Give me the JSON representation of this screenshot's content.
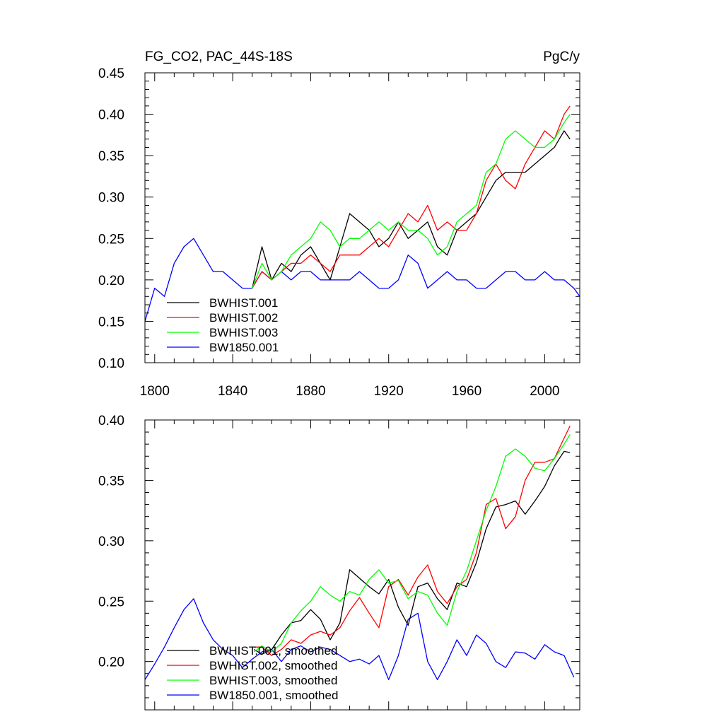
{
  "chart_data": [
    {
      "type": "line",
      "title": "FG_CO2, PAC_44S-18S",
      "units": "PgC/y",
      "xlim": [
        1795,
        2018
      ],
      "ylim": [
        0.1,
        0.45
      ],
      "xticks": [
        1800,
        1840,
        1880,
        1920,
        1960,
        2000
      ],
      "xtick_labels": [
        "1800",
        "1840",
        "1880",
        "1920",
        "1960",
        "2000"
      ],
      "yticks": [
        0.1,
        0.15,
        0.2,
        0.25,
        0.3,
        0.35,
        0.4,
        0.45
      ],
      "ytick_labels": [
        "0.10",
        "0.15",
        "0.20",
        "0.25",
        "0.30",
        "0.35",
        "0.40",
        "0.45"
      ],
      "legend_position": "lower-left",
      "series": [
        {
          "name": "BWHIST.001",
          "color": "#000000",
          "x": [
            1850,
            1855,
            1860,
            1865,
            1870,
            1875,
            1880,
            1885,
            1890,
            1895,
            1900,
            1905,
            1910,
            1915,
            1920,
            1925,
            1930,
            1935,
            1940,
            1945,
            1950,
            1955,
            1960,
            1965,
            1970,
            1975,
            1980,
            1985,
            1990,
            1995,
            2000,
            2005,
            2010,
            2013
          ],
          "y": [
            0.19,
            0.24,
            0.2,
            0.22,
            0.21,
            0.23,
            0.24,
            0.22,
            0.2,
            0.24,
            0.28,
            0.27,
            0.26,
            0.24,
            0.25,
            0.27,
            0.25,
            0.26,
            0.27,
            0.24,
            0.23,
            0.26,
            0.27,
            0.28,
            0.3,
            0.32,
            0.33,
            0.33,
            0.33,
            0.34,
            0.35,
            0.36,
            0.38,
            0.37
          ]
        },
        {
          "name": "BWHIST.002",
          "color": "#ff0000",
          "x": [
            1850,
            1855,
            1860,
            1865,
            1870,
            1875,
            1880,
            1885,
            1890,
            1895,
            1900,
            1905,
            1910,
            1915,
            1920,
            1925,
            1930,
            1935,
            1940,
            1945,
            1950,
            1955,
            1960,
            1965,
            1970,
            1975,
            1980,
            1985,
            1990,
            1995,
            2000,
            2005,
            2010,
            2013
          ],
          "y": [
            0.19,
            0.21,
            0.2,
            0.21,
            0.22,
            0.22,
            0.23,
            0.22,
            0.21,
            0.23,
            0.23,
            0.23,
            0.24,
            0.25,
            0.24,
            0.26,
            0.28,
            0.27,
            0.29,
            0.26,
            0.27,
            0.26,
            0.26,
            0.28,
            0.32,
            0.34,
            0.32,
            0.31,
            0.34,
            0.36,
            0.38,
            0.37,
            0.4,
            0.41
          ]
        },
        {
          "name": "BWHIST.003",
          "color": "#00ff00",
          "x": [
            1850,
            1855,
            1860,
            1865,
            1870,
            1875,
            1880,
            1885,
            1890,
            1895,
            1900,
            1905,
            1910,
            1915,
            1920,
            1925,
            1930,
            1935,
            1940,
            1945,
            1950,
            1955,
            1960,
            1965,
            1970,
            1975,
            1980,
            1985,
            1990,
            1995,
            2000,
            2005,
            2010,
            2013
          ],
          "y": [
            0.19,
            0.22,
            0.2,
            0.21,
            0.23,
            0.24,
            0.25,
            0.27,
            0.26,
            0.24,
            0.25,
            0.25,
            0.26,
            0.27,
            0.26,
            0.27,
            0.26,
            0.26,
            0.25,
            0.23,
            0.24,
            0.27,
            0.28,
            0.29,
            0.33,
            0.34,
            0.37,
            0.38,
            0.37,
            0.36,
            0.36,
            0.37,
            0.39,
            0.4
          ]
        },
        {
          "name": "BW1850.001",
          "color": "#0000ff",
          "x": [
            1795,
            1800,
            1805,
            1810,
            1815,
            1820,
            1825,
            1830,
            1835,
            1840,
            1845,
            1850,
            1855,
            1860,
            1865,
            1870,
            1875,
            1880,
            1885,
            1890,
            1895,
            1900,
            1905,
            1910,
            1915,
            1920,
            1925,
            1930,
            1935,
            1940,
            1945,
            1950,
            1955,
            1960,
            1965,
            1970,
            1975,
            1980,
            1985,
            1990,
            1995,
            2000,
            2005,
            2010,
            2015,
            2018
          ],
          "y": [
            0.15,
            0.19,
            0.18,
            0.22,
            0.24,
            0.25,
            0.23,
            0.21,
            0.21,
            0.2,
            0.19,
            0.19,
            0.21,
            0.2,
            0.21,
            0.2,
            0.21,
            0.21,
            0.2,
            0.2,
            0.2,
            0.2,
            0.21,
            0.2,
            0.19,
            0.19,
            0.2,
            0.23,
            0.22,
            0.19,
            0.2,
            0.21,
            0.2,
            0.2,
            0.19,
            0.19,
            0.2,
            0.21,
            0.21,
            0.2,
            0.2,
            0.21,
            0.2,
            0.2,
            0.19,
            0.18
          ]
        }
      ]
    },
    {
      "type": "line",
      "title": "",
      "xlim": [
        1795,
        2018
      ],
      "ylim": [
        0.16,
        0.4
      ],
      "xticks": [
        1800,
        1840,
        1880,
        1920,
        1960,
        2000
      ],
      "yticks": [
        0.2,
        0.25,
        0.3,
        0.35,
        0.4
      ],
      "ytick_labels": [
        "0.20",
        "0.25",
        "0.30",
        "0.35",
        "0.40"
      ],
      "legend_position": "lower-left",
      "series": [
        {
          "name": "BWHIST.001, smoothed",
          "color": "#000000",
          "x": [
            1851,
            1855,
            1860,
            1865,
            1870,
            1875,
            1880,
            1885,
            1890,
            1895,
            1900,
            1905,
            1910,
            1915,
            1920,
            1925,
            1930,
            1935,
            1940,
            1945,
            1950,
            1955,
            1960,
            1965,
            1970,
            1975,
            1980,
            1985,
            1990,
            1995,
            2000,
            2005,
            2010,
            2013
          ],
          "y": [
            0.21,
            0.206,
            0.21,
            0.222,
            0.232,
            0.234,
            0.243,
            0.235,
            0.218,
            0.232,
            0.276,
            0.269,
            0.262,
            0.256,
            0.268,
            0.245,
            0.23,
            0.262,
            0.265,
            0.252,
            0.243,
            0.265,
            0.262,
            0.282,
            0.31,
            0.328,
            0.33,
            0.333,
            0.322,
            0.333,
            0.345,
            0.362,
            0.374,
            0.373
          ]
        },
        {
          "name": "BWHIST.002, smoothed",
          "color": "#ff0000",
          "x": [
            1851,
            1855,
            1860,
            1865,
            1870,
            1875,
            1880,
            1885,
            1890,
            1895,
            1900,
            1905,
            1910,
            1915,
            1920,
            1925,
            1930,
            1935,
            1940,
            1945,
            1950,
            1955,
            1960,
            1965,
            1970,
            1975,
            1980,
            1985,
            1990,
            1995,
            2000,
            2005,
            2010,
            2013
          ],
          "y": [
            0.212,
            0.212,
            0.205,
            0.21,
            0.218,
            0.215,
            0.222,
            0.225,
            0.222,
            0.228,
            0.242,
            0.253,
            0.24,
            0.228,
            0.262,
            0.268,
            0.255,
            0.27,
            0.28,
            0.258,
            0.248,
            0.262,
            0.268,
            0.29,
            0.33,
            0.335,
            0.31,
            0.32,
            0.35,
            0.365,
            0.365,
            0.368,
            0.385,
            0.395
          ]
        },
        {
          "name": "BWHIST.003, smoothed",
          "color": "#00ff00",
          "x": [
            1851,
            1855,
            1860,
            1865,
            1870,
            1875,
            1880,
            1885,
            1890,
            1895,
            1900,
            1905,
            1910,
            1915,
            1920,
            1925,
            1930,
            1935,
            1940,
            1945,
            1950,
            1955,
            1960,
            1965,
            1970,
            1975,
            1980,
            1985,
            1990,
            1995,
            2000,
            2005,
            2010,
            2013
          ],
          "y": [
            0.208,
            0.213,
            0.208,
            0.215,
            0.232,
            0.242,
            0.25,
            0.262,
            0.255,
            0.25,
            0.258,
            0.255,
            0.268,
            0.276,
            0.265,
            0.267,
            0.252,
            0.258,
            0.255,
            0.24,
            0.23,
            0.258,
            0.275,
            0.3,
            0.325,
            0.345,
            0.37,
            0.376,
            0.37,
            0.36,
            0.358,
            0.368,
            0.38,
            0.388
          ]
        },
        {
          "name": "BW1850.001, smoothed",
          "color": "#0000ff",
          "x": [
            1795,
            1800,
            1805,
            1810,
            1815,
            1820,
            1825,
            1830,
            1835,
            1840,
            1845,
            1850,
            1855,
            1860,
            1865,
            1870,
            1875,
            1880,
            1885,
            1890,
            1895,
            1900,
            1905,
            1910,
            1915,
            1920,
            1925,
            1930,
            1935,
            1940,
            1945,
            1950,
            1955,
            1960,
            1965,
            1970,
            1975,
            1980,
            1985,
            1990,
            1995,
            2000,
            2005,
            2010,
            2015
          ],
          "y": [
            0.185,
            0.198,
            0.212,
            0.228,
            0.243,
            0.252,
            0.232,
            0.218,
            0.21,
            0.205,
            0.195,
            0.202,
            0.208,
            0.21,
            0.2,
            0.21,
            0.213,
            0.208,
            0.212,
            0.21,
            0.205,
            0.2,
            0.202,
            0.198,
            0.205,
            0.185,
            0.205,
            0.235,
            0.24,
            0.2,
            0.185,
            0.2,
            0.218,
            0.205,
            0.222,
            0.215,
            0.2,
            0.195,
            0.208,
            0.207,
            0.202,
            0.214,
            0.208,
            0.205,
            0.187
          ]
        }
      ]
    }
  ]
}
